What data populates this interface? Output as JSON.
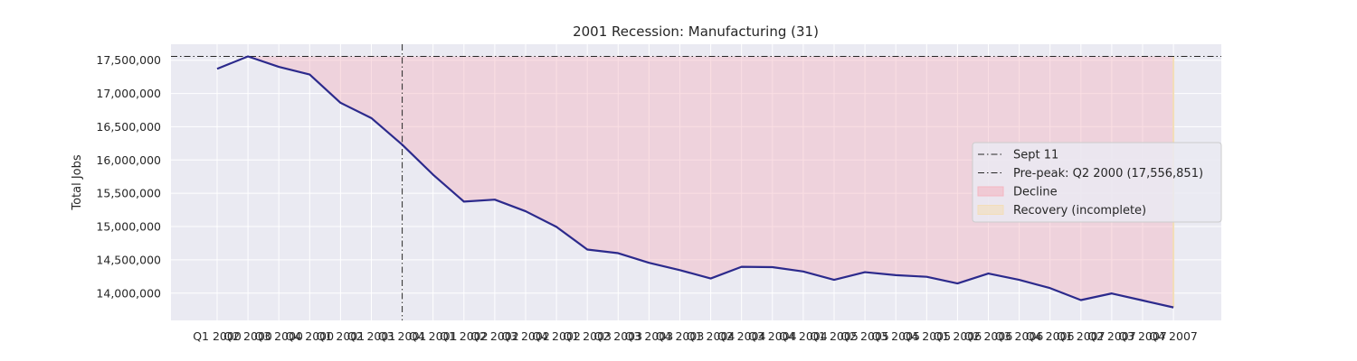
{
  "chart_data": {
    "type": "line",
    "title": "2001 Recession: Manufacturing (31)",
    "xlabel": "",
    "ylabel": "Total Jobs",
    "categories": [
      "Q1 2000",
      "Q2 2000",
      "Q3 2000",
      "Q4 2000",
      "Q1 2001",
      "Q2 2001",
      "Q3 2001",
      "Q4 2001",
      "Q1 2002",
      "Q2 2002",
      "Q3 2002",
      "Q4 2002",
      "Q1 2003",
      "Q2 2003",
      "Q3 2003",
      "Q4 2003",
      "Q1 2004",
      "Q2 2004",
      "Q3 2004",
      "Q4 2004",
      "Q1 2005",
      "Q2 2005",
      "Q3 2005",
      "Q4 2005",
      "Q1 2006",
      "Q2 2006",
      "Q3 2006",
      "Q4 2006",
      "Q1 2007",
      "Q2 2007",
      "Q3 2007",
      "Q4 2007"
    ],
    "series": [
      {
        "values": [
          17370000,
          17556851,
          17400000,
          17285000,
          16860000,
          16630000,
          16230000,
          15780000,
          15375000,
          15405000,
          15230000,
          14995000,
          14655000,
          14600000,
          14455000,
          14345000,
          14220000,
          14395000,
          14390000,
          14325000,
          14200000,
          14315000,
          14270000,
          14245000,
          14145000,
          14295000,
          14200000,
          14075000,
          13895000,
          13995000,
          13890000,
          13785000
        ],
        "color": "#2c2a8c"
      }
    ],
    "ylim": [
      13590000,
      17740000
    ],
    "yticks": [
      14000000,
      14500000,
      15000000,
      15500000,
      16000000,
      16500000,
      17000000,
      17500000
    ],
    "ytick_labels": [
      "14,000,000",
      "14,500,000",
      "15,000,000",
      "15,500,000",
      "16,000,000",
      "16,500,000",
      "17,000,000",
      "17,500,000"
    ],
    "reference_lines": [
      {
        "type": "vertical",
        "at": "Q3 2001",
        "offset": 0.0,
        "label": "Sept 11",
        "style": "dashdot",
        "color": "#262626"
      },
      {
        "type": "horizontal",
        "value": 17556851,
        "label": "Pre-peak: Q2 2000 (17,556,851)",
        "style": "dashdot",
        "color": "#262626"
      }
    ],
    "shaded_regions": [
      {
        "label": "Decline",
        "from": "Q2 2000",
        "to": "Q4 2007",
        "color": "#f4b6c2"
      },
      {
        "label": "Recovery (incomplete)",
        "from": "Q4 2007",
        "to": "Q4 2007",
        "color": "#f3deb8"
      }
    ],
    "legend": {
      "position": "center-right",
      "entries": [
        "Sept 11",
        "Pre-peak: Q2 2000 (17,556,851)",
        "Decline",
        "Recovery (incomplete)"
      ]
    },
    "grid": true,
    "background": "#eaeaf2"
  }
}
